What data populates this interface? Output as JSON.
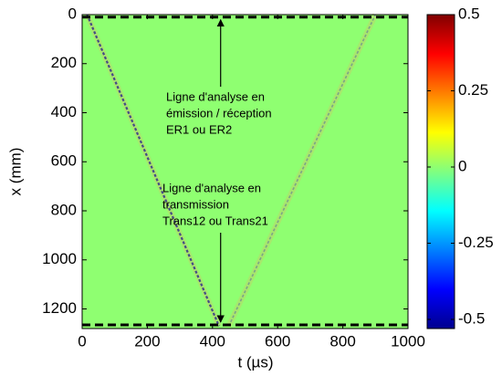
{
  "chart_data": {
    "type": "heatmap",
    "xlabel": "t (µs)",
    "ylabel": "x (mm)",
    "xlim": [
      0,
      1000
    ],
    "xticks": [
      0,
      200,
      400,
      600,
      800,
      1000
    ],
    "ylim": [
      0,
      1280
    ],
    "yticks": [
      0,
      200,
      400,
      600,
      800,
      1000,
      1200
    ],
    "y_inverted": true,
    "background_value": 0,
    "clim": [
      -0.53,
      0.5
    ],
    "cticks": [
      -0.5,
      -0.25,
      0,
      0.25,
      0.5
    ],
    "colormap": [
      "#00008f",
      "#0000ff",
      "#0080ff",
      "#00ffff",
      "#80ff80",
      "#ffff00",
      "#ff8000",
      "#ff0000",
      "#800000"
    ],
    "wavefronts": [
      {
        "t": [
          15,
          420
        ],
        "x": [
          0,
          1270
        ]
      },
      {
        "t": [
          450,
          900
        ],
        "x": [
          1270,
          0
        ]
      }
    ],
    "analysis_lines": [
      10,
      1265
    ],
    "annotations": [
      {
        "lines": [
          "Ligne d'analyse en",
          "émission / réception",
          "ER1 ou ER2"
        ],
        "arrow_t": 425,
        "arrow_to": 10
      },
      {
        "lines": [
          "Ligne d'analyse en",
          "transmission",
          "Trans12 ou Trans21"
        ],
        "arrow_t": 425,
        "arrow_to": 1265
      }
    ]
  }
}
